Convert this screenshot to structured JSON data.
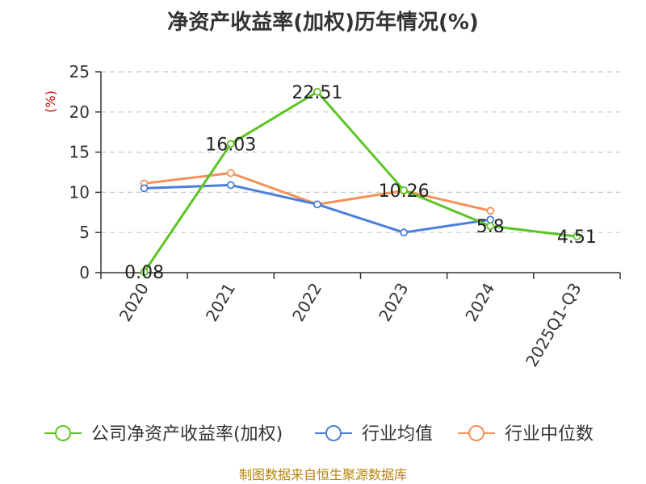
{
  "chart_data": {
    "type": "line",
    "title": "净资产收益率(加权)历年情况(%)",
    "xlabel": "",
    "ylabel": "(%)",
    "ylim": [
      0,
      25
    ],
    "yticks": [
      0,
      5,
      10,
      15,
      20,
      25
    ],
    "grid": true,
    "categories": [
      "2020",
      "2021",
      "2022",
      "2023",
      "2024",
      "2025Q1-Q3"
    ],
    "series": [
      {
        "name": "公司净资产收益率(加权)",
        "color": "#5cc424",
        "values": [
          0.08,
          16.03,
          22.51,
          10.26,
          5.8,
          4.51
        ],
        "labels": [
          "0.08",
          "16.03",
          "22.51",
          "10.26",
          "5.8",
          "4.51"
        ]
      },
      {
        "name": "行业均值",
        "color": "#4a7fdc",
        "values": [
          10.5,
          10.9,
          8.5,
          5.0,
          6.6,
          null
        ]
      },
      {
        "name": "行业中位数",
        "color": "#f4915a",
        "values": [
          11.1,
          12.4,
          8.5,
          10.2,
          7.7,
          null
        ]
      }
    ],
    "legend_position": "bottom",
    "source": "制图数据来自恒生聚源数据库"
  }
}
